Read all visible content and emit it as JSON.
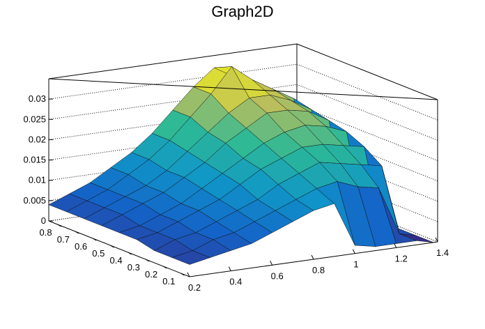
{
  "chart_data": {
    "type": "surface",
    "title": "Graph2D",
    "xlabel": "",
    "ylabel": "",
    "zlabel": "",
    "xlim": [
      0.2,
      1.4
    ],
    "ylim": [
      0.05,
      0.85
    ],
    "zlim": [
      0,
      0.035
    ],
    "grid": true,
    "x_ticks": [
      "0.2",
      "0.4",
      "0.6",
      "0.8",
      "1",
      "1.2",
      "1.4"
    ],
    "y_ticks": [
      "0.1",
      "0.2",
      "0.3",
      "0.4",
      "0.5",
      "0.6",
      "0.7",
      "0.8"
    ],
    "z_ticks": [
      "0",
      "0.005",
      "0.01",
      "0.015",
      "0.02",
      "0.025",
      "0.03"
    ],
    "x_tick_values": [
      0.2,
      0.4,
      0.6,
      0.8,
      1.0,
      1.2,
      1.4
    ],
    "y_tick_values": [
      0.1,
      0.2,
      0.3,
      0.4,
      0.5,
      0.6,
      0.7,
      0.8
    ],
    "z_tick_values": [
      0,
      0.005,
      0.01,
      0.015,
      0.02,
      0.025,
      0.03
    ],
    "surface_x": [
      0.2,
      0.3,
      0.4,
      0.5,
      0.6,
      0.7,
      0.8,
      0.9,
      1.0,
      1.1,
      1.2,
      1.3,
      1.38
    ],
    "surface_y": [
      0.05,
      0.15,
      0.25,
      0.35,
      0.45,
      0.55,
      0.65,
      0.75,
      0.85
    ],
    "surface_z": [
      [
        0.003,
        0.004,
        0.005,
        0.006,
        0.008,
        0.01,
        0.012,
        0.013,
        0.002,
        0.001,
        0.001,
        0.001,
        0.0
      ],
      [
        0.003,
        0.004,
        0.006,
        0.007,
        0.009,
        0.011,
        0.013,
        0.015,
        0.016,
        0.014,
        0.013,
        0.001,
        0.0
      ],
      [
        0.003,
        0.005,
        0.006,
        0.008,
        0.01,
        0.012,
        0.015,
        0.017,
        0.019,
        0.018,
        0.017,
        0.016,
        0.0
      ],
      [
        0.004,
        0.005,
        0.007,
        0.009,
        0.011,
        0.014,
        0.017,
        0.019,
        0.021,
        0.021,
        0.02,
        0.019,
        0.0
      ],
      [
        0.004,
        0.005,
        0.007,
        0.009,
        0.012,
        0.015,
        0.018,
        0.021,
        0.023,
        0.024,
        0.023,
        0.021,
        0.0
      ],
      [
        0.004,
        0.006,
        0.008,
        0.01,
        0.013,
        0.016,
        0.02,
        0.023,
        0.026,
        0.026,
        0.025,
        0.022,
        0.0
      ],
      [
        0.004,
        0.006,
        0.008,
        0.01,
        0.013,
        0.017,
        0.021,
        0.025,
        0.028,
        0.028,
        0.026,
        0.023,
        0.0
      ],
      [
        0.004,
        0.006,
        0.008,
        0.011,
        0.014,
        0.018,
        0.023,
        0.028,
        0.034,
        0.03,
        0.027,
        0.024,
        0.0
      ],
      [
        0.004,
        0.006,
        0.008,
        0.011,
        0.014,
        0.018,
        0.023,
        0.028,
        0.032,
        0.029,
        0.027,
        0.023,
        0.0
      ]
    ]
  }
}
